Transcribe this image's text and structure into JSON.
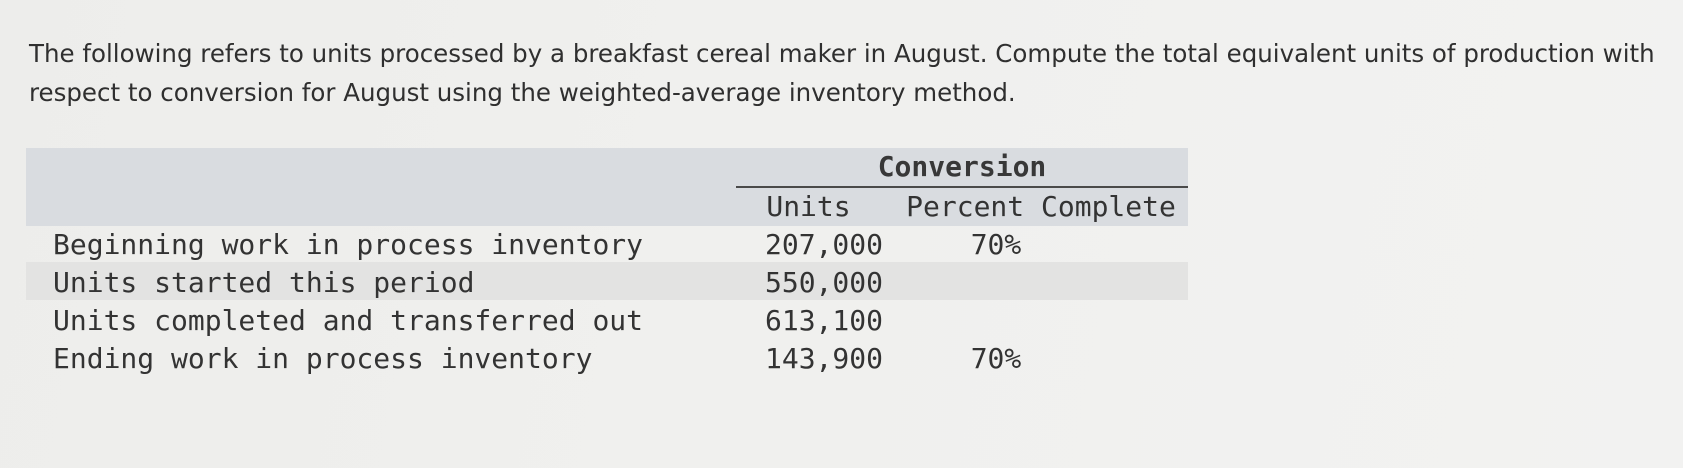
{
  "question": "The following refers to units processed by a breakfast cereal maker in August. Compute the total equivalent units of production with respect to conversion for August using the weighted-average inventory method.",
  "table": {
    "group_header": "Conversion",
    "col_units": "Units",
    "col_percent": "Percent Complete",
    "rows": [
      {
        "label": "Beginning work in process inventory",
        "units": "207,000",
        "percent": "70%"
      },
      {
        "label": "Units started this period",
        "units": "550,000",
        "percent": ""
      },
      {
        "label": "Units completed and transferred out",
        "units": "613,100",
        "percent": ""
      },
      {
        "label": "Ending work in process inventory",
        "units": "143,900",
        "percent": "70%"
      }
    ]
  }
}
